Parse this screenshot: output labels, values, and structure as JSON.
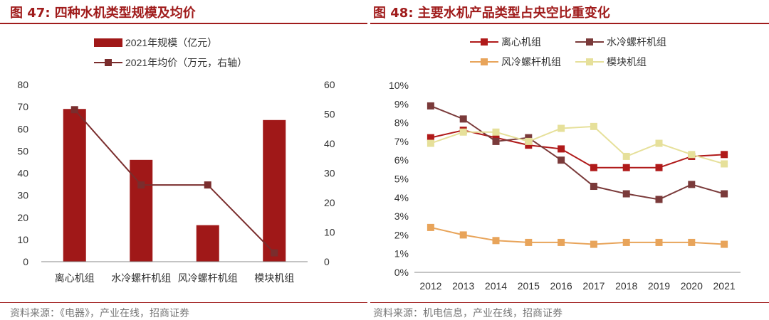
{
  "left": {
    "title": "图 47:  四种水机类型规模及均价",
    "source": "资料来源：《电器》，产业在线，招商证券",
    "chart_data": {
      "type": "bar",
      "categories": [
        "离心机组",
        "水冷螺杆机组",
        "风冷螺杆机组",
        "模块机组"
      ],
      "series": [
        {
          "name": "2021年规模（亿元）",
          "type": "bar",
          "axis": "left",
          "color": "#a01818",
          "values": [
            69,
            46,
            16.5,
            64
          ]
        },
        {
          "name": "2021年均价（万元，右轴）",
          "type": "line",
          "axis": "right",
          "color": "#7a2d2d",
          "values": [
            51.5,
            26,
            26,
            3
          ]
        }
      ],
      "ylim_left": [
        0,
        80
      ],
      "yticks_left": [
        "0",
        "10",
        "20",
        "30",
        "40",
        "50",
        "60",
        "70",
        "80"
      ],
      "ylim_right": [
        0,
        60
      ],
      "yticks_right": [
        "0",
        "10",
        "20",
        "30",
        "40",
        "50",
        "60"
      ],
      "legend_position": "top"
    }
  },
  "right": {
    "title": "图 48:  主要水机产品类型占央空比重变化",
    "source": "资料来源：机电信息，产业在线，招商证券",
    "chart_data": {
      "type": "line",
      "x": [
        "2012",
        "2013",
        "2014",
        "2015",
        "2016",
        "2017",
        "2018",
        "2019",
        "2020",
        "2021"
      ],
      "series": [
        {
          "name": "离心机组",
          "color": "#b01a1a",
          "values": [
            7.2,
            7.6,
            7.2,
            6.8,
            6.6,
            5.6,
            5.6,
            5.6,
            6.2,
            6.3
          ]
        },
        {
          "name": "水冷螺杆机组",
          "color": "#7a3a3a",
          "values": [
            8.9,
            8.2,
            7.0,
            7.2,
            6.0,
            4.6,
            4.2,
            3.9,
            4.7,
            4.2
          ]
        },
        {
          "name": "风冷螺杆机组",
          "color": "#e8a45a",
          "values": [
            2.4,
            2.0,
            1.7,
            1.6,
            1.6,
            1.5,
            1.6,
            1.6,
            1.6,
            1.5
          ]
        },
        {
          "name": "模块机组",
          "color": "#e6e09a",
          "values": [
            6.9,
            7.5,
            7.5,
            7.0,
            7.7,
            7.8,
            6.2,
            6.9,
            6.3,
            5.8
          ]
        }
      ],
      "ylim": [
        0,
        10
      ],
      "yticks": [
        "0%",
        "1%",
        "2%",
        "3%",
        "4%",
        "5%",
        "6%",
        "7%",
        "8%",
        "9%",
        "10%"
      ],
      "legend_position": "top"
    }
  }
}
